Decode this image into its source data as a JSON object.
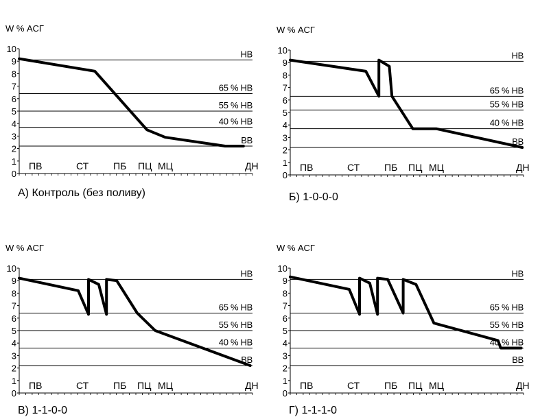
{
  "chart_data": [
    {
      "type": "line",
      "title": "А) Контроль (без поливу)",
      "ylabel": "W % АСГ",
      "ylim": [
        0,
        10
      ],
      "yticks": [
        "0",
        "1",
        "2",
        "3",
        "4",
        "5",
        "6",
        "7",
        "8",
        "9",
        "10"
      ],
      "phases": [
        "ПВ",
        "СТ",
        "ПБ",
        "ПЦ",
        "МЦ",
        "ДН"
      ],
      "reference_lines": [
        {
          "label": "НВ",
          "value": 9.1
        },
        {
          "label": "65 % НВ",
          "value": 6.4
        },
        {
          "label": "55 % НВ",
          "value": 5.0
        },
        {
          "label": "40 % НВ",
          "value": 3.7
        },
        {
          "label": "ВВ",
          "value": 2.2
        }
      ],
      "series": [
        {
          "x": [
            0,
            2.9,
            4.9,
            5.6,
            7.9,
            8.6
          ],
          "y": [
            9.2,
            8.2,
            3.5,
            2.9,
            2.2,
            2.2
          ]
        }
      ]
    },
    {
      "type": "line",
      "title": "Б) 1-0-0-0",
      "ylabel": "W % АСГ",
      "ylim": [
        0,
        10
      ],
      "yticks": [
        "0",
        "1",
        "2",
        "3",
        "4",
        "5",
        "6",
        "7",
        "8",
        "9",
        "10"
      ],
      "phases": [
        "ПВ",
        "СТ",
        "ПБ",
        "ПЦ",
        "МЦ",
        "ДН"
      ],
      "reference_lines": [
        {
          "label": "НВ",
          "value": 9.1
        },
        {
          "label": "65 % НВ",
          "value": 6.3
        },
        {
          "label": "55 % НВ",
          "value": 5.2
        },
        {
          "label": "40 % НВ",
          "value": 3.7
        },
        {
          "label": "ВВ",
          "value": 2.2
        }
      ],
      "series": [
        {
          "x": [
            0,
            2.9,
            3.4,
            3.4,
            3.8,
            3.9,
            4.7,
            5.6,
            8.9
          ],
          "y": [
            9.2,
            8.3,
            6.3,
            9.2,
            8.7,
            6.3,
            3.7,
            3.7,
            2.2
          ]
        }
      ]
    },
    {
      "type": "line",
      "title": "В) 1-1-0-0",
      "ylabel": "W % АСГ",
      "ylim": [
        0,
        10
      ],
      "yticks": [
        "0",
        "1",
        "2",
        "3",
        "4",
        "5",
        "6",
        "7",
        "8",
        "9",
        "10"
      ],
      "phases": [
        "ПВ",
        "СТ",
        "ПБ",
        "ПЦ",
        "МЦ",
        "ДН"
      ],
      "reference_lines": [
        {
          "label": "НВ",
          "value": 9.1
        },
        {
          "label": "65 % НВ",
          "value": 6.4
        },
        {
          "label": "55 % НВ",
          "value": 5.0
        },
        {
          "label": "40 % НВ",
          "value": 3.6
        },
        {
          "label": "ВВ",
          "value": 2.2
        }
      ],
      "series": [
        {
          "x": [
            0,
            2.3,
            2.7,
            2.7,
            3.1,
            3.4,
            3.4,
            3.8,
            4.6,
            5.3,
            9.0
          ],
          "y": [
            9.2,
            8.2,
            6.3,
            9.1,
            8.7,
            6.3,
            9.1,
            9.0,
            6.4,
            5.0,
            2.2
          ]
        }
      ]
    },
    {
      "type": "line",
      "title": "Г) 1-1-1-0",
      "ylabel": "W % АСГ",
      "ylim": [
        0,
        10
      ],
      "yticks": [
        "0",
        "1",
        "2",
        "3",
        "4",
        "5",
        "6",
        "7",
        "8",
        "9",
        "10"
      ],
      "phases": [
        "ПВ",
        "СТ",
        "ПБ",
        "ПЦ",
        "МЦ",
        "ДН"
      ],
      "reference_lines": [
        {
          "label": "НВ",
          "value": 9.1
        },
        {
          "label": "65 % НВ",
          "value": 6.4
        },
        {
          "label": "55 % НВ",
          "value": 5.0
        },
        {
          "label": "40 % НВ",
          "value": 3.6
        },
        {
          "label": "ВВ",
          "value": 2.2
        }
      ],
      "series": [
        {
          "x": [
            0,
            2.3,
            2.7,
            2.7,
            3.1,
            3.4,
            3.4,
            3.8,
            4.4,
            4.4,
            4.9,
            5.6,
            8.1,
            8.2,
            9.0
          ],
          "y": [
            9.3,
            8.3,
            6.3,
            9.2,
            8.8,
            6.3,
            9.2,
            9.1,
            6.4,
            9.1,
            8.7,
            5.6,
            4.2,
            3.6,
            3.6
          ]
        }
      ]
    }
  ]
}
